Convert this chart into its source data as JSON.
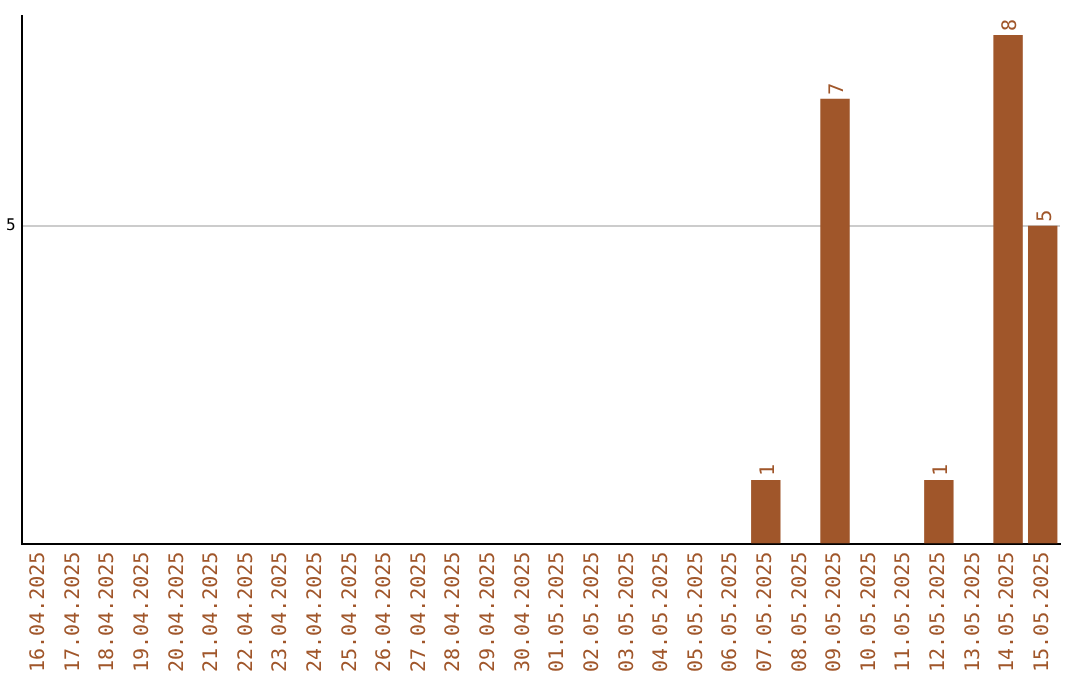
{
  "chart_data": {
    "type": "bar",
    "categories": [
      "16.04.2025",
      "17.04.2025",
      "18.04.2025",
      "19.04.2025",
      "20.04.2025",
      "21.04.2025",
      "22.04.2025",
      "23.04.2025",
      "24.04.2025",
      "25.04.2025",
      "26.04.2025",
      "27.04.2025",
      "28.04.2025",
      "29.04.2025",
      "30.04.2025",
      "01.05.2025",
      "02.05.2025",
      "03.05.2025",
      "04.05.2025",
      "05.05.2025",
      "06.05.2025",
      "07.05.2025",
      "08.05.2025",
      "09.05.2025",
      "10.05.2025",
      "11.05.2025",
      "12.05.2025",
      "13.05.2025",
      "14.05.2025",
      "15.05.2025"
    ],
    "values": [
      null,
      null,
      null,
      null,
      null,
      null,
      null,
      null,
      null,
      null,
      null,
      null,
      null,
      null,
      null,
      null,
      null,
      null,
      null,
      null,
      null,
      1,
      null,
      7,
      null,
      null,
      1,
      null,
      8,
      5
    ],
    "data_labels": true,
    "color": "#a0562a",
    "ylim": [
      0,
      8.3
    ],
    "yticks": [
      5
    ],
    "grid": "y",
    "legend": false
  }
}
